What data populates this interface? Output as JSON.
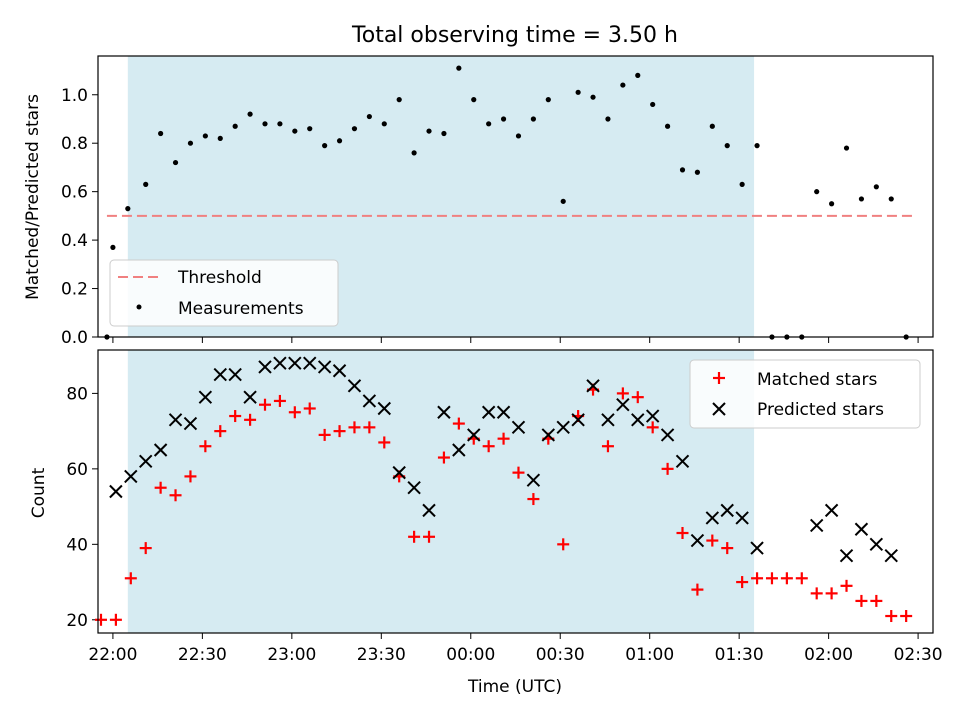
{
  "title": "Total observing time = 3.50 h",
  "colors": {
    "shade": "#add8e6",
    "threshold": "#f08080",
    "measurement": "#000000",
    "matched": "#ff0000",
    "predicted": "#000000"
  },
  "chart_data": [
    {
      "type": "scatter",
      "panel": "top",
      "ylabel": "Matched/Predicted stars",
      "xlim": [
        "21:55",
        "02:35"
      ],
      "ylim": [
        0,
        1.16
      ],
      "yticks": [
        "0.0",
        "0.2",
        "0.4",
        "0.6",
        "0.8",
        "1.0"
      ],
      "shaded_interval": [
        "22:05",
        "01:35"
      ],
      "legend": {
        "placement": "lower-left",
        "entries": [
          "Threshold",
          "Measurements"
        ]
      },
      "threshold": {
        "name": "Threshold",
        "y": 0.5,
        "x": [
          "21:58",
          "02:28"
        ]
      },
      "measurements": {
        "name": "Measurements",
        "points": [
          [
            "21:58",
            0.0
          ],
          [
            "22:00",
            0.37
          ],
          [
            "22:05",
            0.53
          ],
          [
            "22:11",
            0.63
          ],
          [
            "22:16",
            0.84
          ],
          [
            "22:21",
            0.72
          ],
          [
            "22:26",
            0.8
          ],
          [
            "22:31",
            0.83
          ],
          [
            "22:36",
            0.82
          ],
          [
            "22:41",
            0.87
          ],
          [
            "22:46",
            0.92
          ],
          [
            "22:51",
            0.88
          ],
          [
            "22:56",
            0.88
          ],
          [
            "23:01",
            0.85
          ],
          [
            "23:06",
            0.86
          ],
          [
            "23:11",
            0.79
          ],
          [
            "23:16",
            0.81
          ],
          [
            "23:21",
            0.86
          ],
          [
            "23:26",
            0.91
          ],
          [
            "23:31",
            0.88
          ],
          [
            "23:36",
            0.98
          ],
          [
            "23:41",
            0.76
          ],
          [
            "23:46",
            0.85
          ],
          [
            "23:51",
            0.84
          ],
          [
            "23:56",
            1.11
          ],
          [
            "00:01",
            0.98
          ],
          [
            "00:06",
            0.88
          ],
          [
            "00:11",
            0.9
          ],
          [
            "00:16",
            0.83
          ],
          [
            "00:21",
            0.9
          ],
          [
            "00:26",
            0.98
          ],
          [
            "00:31",
            0.56
          ],
          [
            "00:36",
            1.01
          ],
          [
            "00:41",
            0.99
          ],
          [
            "00:46",
            0.9
          ],
          [
            "00:51",
            1.04
          ],
          [
            "00:56",
            1.08
          ],
          [
            "01:01",
            0.96
          ],
          [
            "01:06",
            0.87
          ],
          [
            "01:11",
            0.69
          ],
          [
            "01:16",
            0.68
          ],
          [
            "01:21",
            0.87
          ],
          [
            "01:26",
            0.79
          ],
          [
            "01:31",
            0.63
          ],
          [
            "01:36",
            0.79
          ],
          [
            "01:41",
            0.0
          ],
          [
            "01:46",
            0.0
          ],
          [
            "01:51",
            0.0
          ],
          [
            "01:56",
            0.6
          ],
          [
            "02:01",
            0.55
          ],
          [
            "02:06",
            0.78
          ],
          [
            "02:11",
            0.57
          ],
          [
            "02:16",
            0.62
          ],
          [
            "02:21",
            0.57
          ],
          [
            "02:26",
            0.0
          ]
        ]
      }
    },
    {
      "type": "scatter",
      "panel": "bottom",
      "xlabel": "Time (UTC)",
      "ylabel": "Count",
      "xlim": [
        "21:55",
        "02:35"
      ],
      "ylim": [
        16.5,
        91.5
      ],
      "yticks": [
        "20",
        "40",
        "60",
        "80"
      ],
      "xticks": [
        "22:00",
        "22:30",
        "23:00",
        "23:30",
        "00:00",
        "00:30",
        "01:00",
        "01:30",
        "02:00",
        "02:30"
      ],
      "shaded_interval": [
        "22:05",
        "01:35"
      ],
      "legend": {
        "placement": "upper-right",
        "entries": [
          "Matched stars",
          "Predicted stars"
        ]
      },
      "series": [
        {
          "name": "Matched stars",
          "marker": "plus",
          "points": [
            [
              "21:56",
              20
            ],
            [
              "22:01",
              20
            ],
            [
              "22:06",
              31
            ],
            [
              "22:11",
              39
            ],
            [
              "22:16",
              55
            ],
            [
              "22:21",
              53
            ],
            [
              "22:26",
              58
            ],
            [
              "22:31",
              66
            ],
            [
              "22:36",
              70
            ],
            [
              "22:41",
              74
            ],
            [
              "22:46",
              73
            ],
            [
              "22:51",
              77
            ],
            [
              "22:56",
              78
            ],
            [
              "23:01",
              75
            ],
            [
              "23:06",
              76
            ],
            [
              "23:11",
              69
            ],
            [
              "23:16",
              70
            ],
            [
              "23:21",
              71
            ],
            [
              "23:26",
              71
            ],
            [
              "23:31",
              67
            ],
            [
              "23:36",
              58
            ],
            [
              "23:41",
              42
            ],
            [
              "23:46",
              42
            ],
            [
              "23:51",
              63
            ],
            [
              "23:56",
              72
            ],
            [
              "00:01",
              68
            ],
            [
              "00:06",
              66
            ],
            [
              "00:11",
              68
            ],
            [
              "00:16",
              59
            ],
            [
              "00:21",
              52
            ],
            [
              "00:26",
              68
            ],
            [
              "00:31",
              40
            ],
            [
              "00:36",
              74
            ],
            [
              "00:41",
              81
            ],
            [
              "00:46",
              66
            ],
            [
              "00:51",
              80
            ],
            [
              "00:56",
              79
            ],
            [
              "01:01",
              71
            ],
            [
              "01:06",
              60
            ],
            [
              "01:11",
              43
            ],
            [
              "01:16",
              28
            ],
            [
              "01:21",
              41
            ],
            [
              "01:26",
              39
            ],
            [
              "01:31",
              30
            ],
            [
              "01:36",
              31
            ],
            [
              "01:41",
              31
            ],
            [
              "01:46",
              31
            ],
            [
              "01:51",
              31
            ],
            [
              "01:56",
              27
            ],
            [
              "02:01",
              27
            ],
            [
              "02:06",
              29
            ],
            [
              "02:11",
              25
            ],
            [
              "02:16",
              25
            ],
            [
              "02:21",
              21
            ],
            [
              "02:26",
              21
            ]
          ]
        },
        {
          "name": "Predicted stars",
          "marker": "x",
          "points": [
            [
              "22:01",
              54
            ],
            [
              "22:06",
              58
            ],
            [
              "22:11",
              62
            ],
            [
              "22:16",
              65
            ],
            [
              "22:21",
              73
            ],
            [
              "22:26",
              72
            ],
            [
              "22:31",
              79
            ],
            [
              "22:36",
              85
            ],
            [
              "22:41",
              85
            ],
            [
              "22:46",
              79
            ],
            [
              "22:51",
              87
            ],
            [
              "22:56",
              88
            ],
            [
              "23:01",
              88
            ],
            [
              "23:06",
              88
            ],
            [
              "23:11",
              87
            ],
            [
              "23:16",
              86
            ],
            [
              "23:21",
              82
            ],
            [
              "23:26",
              78
            ],
            [
              "23:31",
              76
            ],
            [
              "23:36",
              59
            ],
            [
              "23:41",
              55
            ],
            [
              "23:46",
              49
            ],
            [
              "23:51",
              75
            ],
            [
              "23:56",
              65
            ],
            [
              "00:01",
              69
            ],
            [
              "00:06",
              75
            ],
            [
              "00:11",
              75
            ],
            [
              "00:16",
              71
            ],
            [
              "00:21",
              57
            ],
            [
              "00:26",
              69
            ],
            [
              "00:31",
              71
            ],
            [
              "00:36",
              73
            ],
            [
              "00:41",
              82
            ],
            [
              "00:46",
              73
            ],
            [
              "00:51",
              77
            ],
            [
              "00:56",
              73
            ],
            [
              "01:01",
              74
            ],
            [
              "01:06",
              69
            ],
            [
              "01:11",
              62
            ],
            [
              "01:16",
              41
            ],
            [
              "01:21",
              47
            ],
            [
              "01:26",
              49
            ],
            [
              "01:31",
              47
            ],
            [
              "01:36",
              39
            ],
            [
              "01:56",
              45
            ],
            [
              "02:01",
              49
            ],
            [
              "02:06",
              37
            ],
            [
              "02:11",
              44
            ],
            [
              "02:16",
              40
            ],
            [
              "02:21",
              37
            ]
          ]
        }
      ]
    }
  ]
}
